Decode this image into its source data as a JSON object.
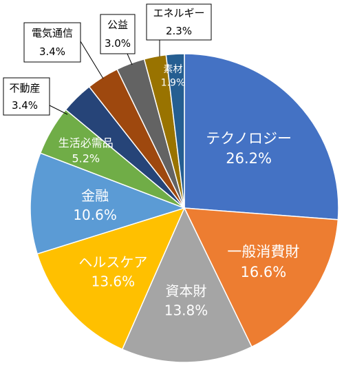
{
  "chart_data": {
    "type": "pie",
    "slices": [
      {
        "label": "テクノロジー",
        "value": 26.2,
        "display": "26.2%",
        "color": "#4472C4"
      },
      {
        "label": "一般消費財",
        "value": 16.6,
        "display": "16.6%",
        "color": "#ED7D31"
      },
      {
        "label": "資本財",
        "value": 13.8,
        "display": "13.8%",
        "color": "#A5A5A5"
      },
      {
        "label": "ヘルスケア",
        "value": 13.6,
        "display": "13.6%",
        "color": "#FFC000"
      },
      {
        "label": "金融",
        "value": 10.6,
        "display": "10.6%",
        "color": "#5B9BD5"
      },
      {
        "label": "生活必需品",
        "value": 5.2,
        "display": "5.2%",
        "color": "#70AD47"
      },
      {
        "label": "不動産",
        "value": 3.4,
        "display": "3.4%",
        "color": "#264478"
      },
      {
        "label": "電気通信",
        "value": 3.4,
        "display": "3.4%",
        "color": "#9E480E"
      },
      {
        "label": "公益",
        "value": 3.0,
        "display": "3.0%",
        "color": "#636363"
      },
      {
        "label": "エネルギー",
        "value": 2.3,
        "display": "2.3%",
        "color": "#997300"
      },
      {
        "label": "素材",
        "value": 1.9,
        "display": "1.9%",
        "color": "#255E91"
      }
    ]
  }
}
